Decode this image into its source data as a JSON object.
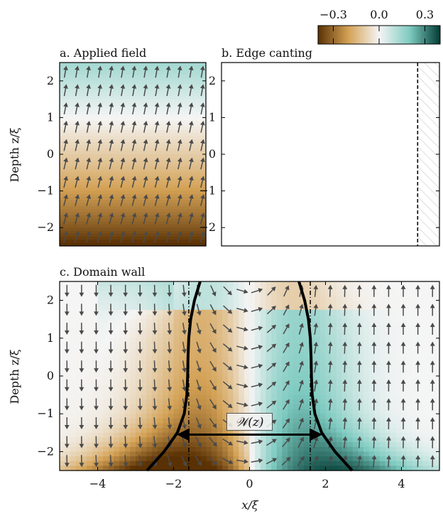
{
  "colorbar": {
    "ticks": [
      -0.3,
      0.0,
      0.3
    ],
    "tick_labels": [
      "−0.3",
      "0.0",
      "0.3"
    ],
    "range": [
      -0.4,
      0.4
    ],
    "colors": {
      "neg": "#5a3104",
      "mid_neg": "#d4a256",
      "zero": "#f5f5f5",
      "mid_pos": "#7fcbc1",
      "pos": "#013c34"
    }
  },
  "arrow_color": "#4a4a4a",
  "wall_color": "#000000",
  "chart_data": [
    {
      "type": "heatmap",
      "title": "a. Applied field",
      "ylabel": "Depth z/ξ",
      "xlim": [
        -5,
        5
      ],
      "ylim": [
        -2.5,
        2.5
      ],
      "yticks": [
        -2,
        -1,
        0,
        1,
        2
      ],
      "ytick_labels": [
        "−2",
        "−1",
        "0",
        "1",
        "2"
      ],
      "description_field": "uniform in x; varies with depth"
    },
    {
      "type": "heatmap",
      "title": "b. Edge canting",
      "xlim": [
        -5,
        5
      ],
      "ylim": [
        -2.5,
        2.5
      ],
      "edge_x": 4.0,
      "yticks": [
        -2,
        -1,
        0,
        1,
        2
      ],
      "ytick_labels": [
        "−2",
        "−1",
        "0",
        "1",
        "2"
      ]
    },
    {
      "type": "heatmap",
      "title": "c. Domain wall",
      "xlabel": "x/ξ",
      "ylabel": "Depth z/ξ",
      "xlim": [
        -5,
        5
      ],
      "ylim": [
        -2.5,
        2.5
      ],
      "xticks": [
        -4,
        -2,
        0,
        2,
        4
      ],
      "xtick_labels": [
        "−4",
        "−2",
        "0",
        "2",
        "4"
      ],
      "yticks": [
        -2,
        -1,
        0,
        1,
        2
      ],
      "ytick_labels": [
        "−2",
        "−1",
        "0",
        "1",
        "2"
      ],
      "dashed_lines_x": [
        -1.6,
        1.6
      ],
      "width_arrow": {
        "x_from": -1.85,
        "x_to": 1.85,
        "z": -1.55,
        "label": "𝒲(z)"
      },
      "wall_boundary": [
        {
          "z": 2.5,
          "x": 1.3
        },
        {
          "z": 2.0,
          "x": 1.45
        },
        {
          "z": 1.5,
          "x": 1.55
        },
        {
          "z": 1.0,
          "x": 1.6
        },
        {
          "z": 0.5,
          "x": 1.62
        },
        {
          "z": 0.0,
          "x": 1.63
        },
        {
          "z": -0.5,
          "x": 1.65
        },
        {
          "z": -1.0,
          "x": 1.72
        },
        {
          "z": -1.5,
          "x": 1.9
        },
        {
          "z": -2.0,
          "x": 2.25
        },
        {
          "z": -2.5,
          "x": 2.7
        }
      ]
    }
  ]
}
